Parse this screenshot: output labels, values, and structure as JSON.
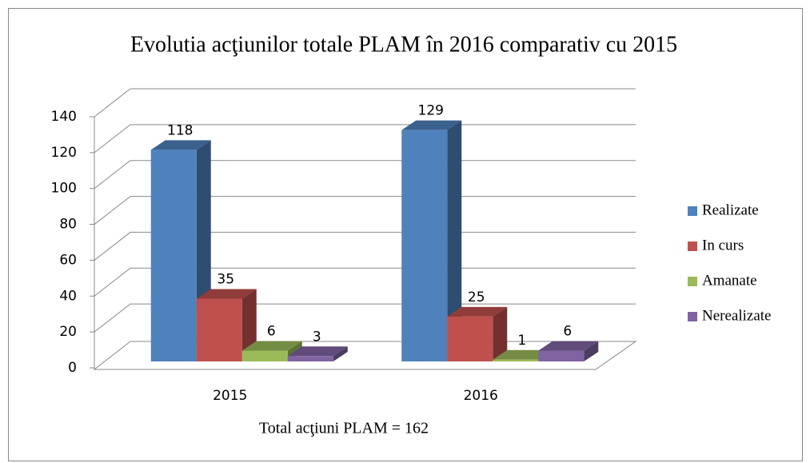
{
  "chart_data": {
    "type": "bar3d",
    "title": "Evolutia acţiunilor totale PLAM în 2016 comparativ cu 2015",
    "x_label": "Total acţiuni PLAM = 162",
    "categories": [
      "2015",
      "2016"
    ],
    "series": [
      {
        "name": "Realizate",
        "color": "#4f81bd",
        "values": [
          118,
          129
        ]
      },
      {
        "name": "In curs",
        "color": "#c0504d",
        "values": [
          35,
          25
        ]
      },
      {
        "name": "Amanate",
        "color": "#9bbb59",
        "values": [
          6,
          1
        ]
      },
      {
        "name": "Nerealizate",
        "color": "#8064a2",
        "values": [
          3,
          6
        ]
      }
    ],
    "ylim": [
      0,
      140
    ],
    "yticks": [
      0,
      20,
      40,
      60,
      80,
      100,
      120,
      140
    ],
    "grid": true,
    "legend": "right"
  }
}
